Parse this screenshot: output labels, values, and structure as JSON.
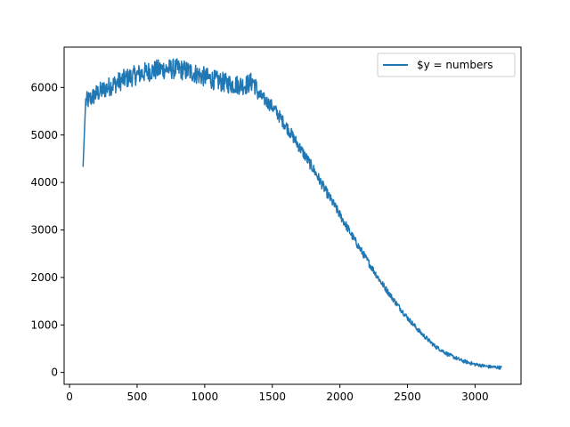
{
  "chart_data": {
    "type": "line",
    "title": "",
    "xlabel": "",
    "ylabel": "",
    "xlim": [
      -40,
      3340
    ],
    "ylim": [
      -250,
      6850
    ],
    "xticks": [
      0,
      500,
      1000,
      1500,
      2000,
      2500,
      3000
    ],
    "yticks": [
      0,
      1000,
      2000,
      3000,
      4000,
      5000,
      6000
    ],
    "grid": false,
    "legend_position": "top-right",
    "series": [
      {
        "name": "$y = numbers",
        "color": "#1f77b4",
        "noise_amplitude": 160,
        "x": [
          100,
          120,
          150,
          200,
          300,
          400,
          500,
          600,
          700,
          800,
          900,
          1000,
          1100,
          1200,
          1300,
          1360,
          1400,
          1500,
          1600,
          1700,
          1800,
          1900,
          2000,
          2100,
          2200,
          2300,
          2400,
          2500,
          2600,
          2700,
          2800,
          2900,
          3000,
          3100,
          3200
        ],
        "y": [
          4330,
          5700,
          5750,
          5870,
          6030,
          6170,
          6270,
          6350,
          6390,
          6390,
          6330,
          6220,
          6130,
          6070,
          6050,
          6130,
          5850,
          5600,
          5200,
          4750,
          4300,
          3800,
          3320,
          2830,
          2370,
          1920,
          1520,
          1150,
          830,
          560,
          380,
          250,
          170,
          120,
          100
        ]
      }
    ]
  }
}
